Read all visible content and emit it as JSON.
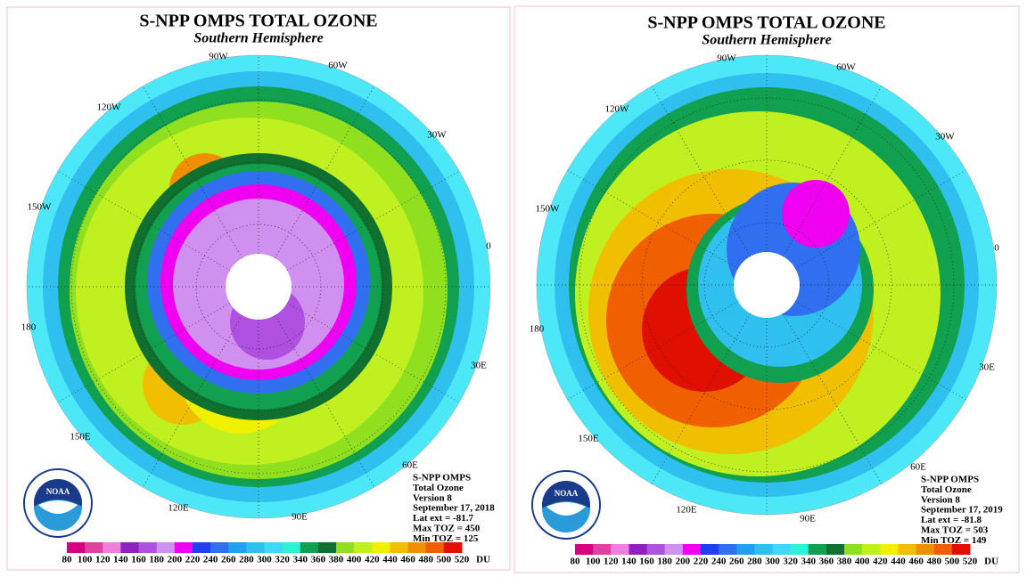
{
  "panels": [
    {
      "title": "S-NPP OMPS TOTAL OZONE",
      "subtitle": "Southern Hemisphere",
      "longitude_labels": [
        "90W",
        "60W",
        "30W",
        "0",
        "30E",
        "60E",
        "90E",
        "120E",
        "150E",
        "180",
        "150W",
        "120W"
      ],
      "logo": "NOAA",
      "info": [
        "S-NPP OMPS",
        "Total Ozone",
        "Version 8",
        "September 17, 2018",
        "Lat ext = -81.7",
        "Max TOZ = 450",
        "Min TOZ = 125"
      ],
      "colorbar": {
        "colors": [
          "#d4007f",
          "#e040a0",
          "#f080e0",
          "#9020c0",
          "#b050e0",
          "#d090f0",
          "#f000f0",
          "#2040f0",
          "#3070f0",
          "#20a0f0",
          "#30c0f0",
          "#40d8f8",
          "#30f0d8",
          "#10a050",
          "#107030",
          "#90e020",
          "#c0f020",
          "#f0f000",
          "#f0c000",
          "#f09000",
          "#f06000",
          "#e01000"
        ],
        "ticks": [
          80,
          100,
          120,
          140,
          160,
          180,
          200,
          220,
          240,
          260,
          280,
          300,
          320,
          340,
          360,
          380,
          400,
          420,
          440,
          460,
          480,
          500,
          520
        ],
        "unit": "DU"
      }
    },
    {
      "title": "S-NPP OMPS TOTAL OZONE",
      "subtitle": "Southern Hemisphere",
      "longitude_labels": [
        "90W",
        "60W",
        "30W",
        "0",
        "30E",
        "60E",
        "90E",
        "120E",
        "150E",
        "180",
        "150W",
        "120W"
      ],
      "logo": "NOAA",
      "info": [
        "S-NPP OMPS",
        "Total Ozone",
        "Version 8",
        "September 17, 2019",
        "Lat ext = -81.8",
        "Max TOZ = 503",
        "Min TOZ = 149"
      ],
      "colorbar": {
        "colors": [
          "#d4007f",
          "#e040a0",
          "#f080e0",
          "#9020c0",
          "#b050e0",
          "#d090f0",
          "#f000f0",
          "#2040f0",
          "#3070f0",
          "#20a0f0",
          "#30c0f0",
          "#40d8f8",
          "#30f0d8",
          "#10a050",
          "#107030",
          "#90e020",
          "#c0f020",
          "#f0f000",
          "#f0c000",
          "#f09000",
          "#f06000",
          "#e01000"
        ],
        "ticks": [
          80,
          100,
          120,
          140,
          160,
          180,
          200,
          220,
          240,
          260,
          280,
          300,
          320,
          340,
          360,
          380,
          400,
          420,
          440,
          460,
          480,
          500,
          520
        ],
        "unit": "DU"
      }
    }
  ]
}
